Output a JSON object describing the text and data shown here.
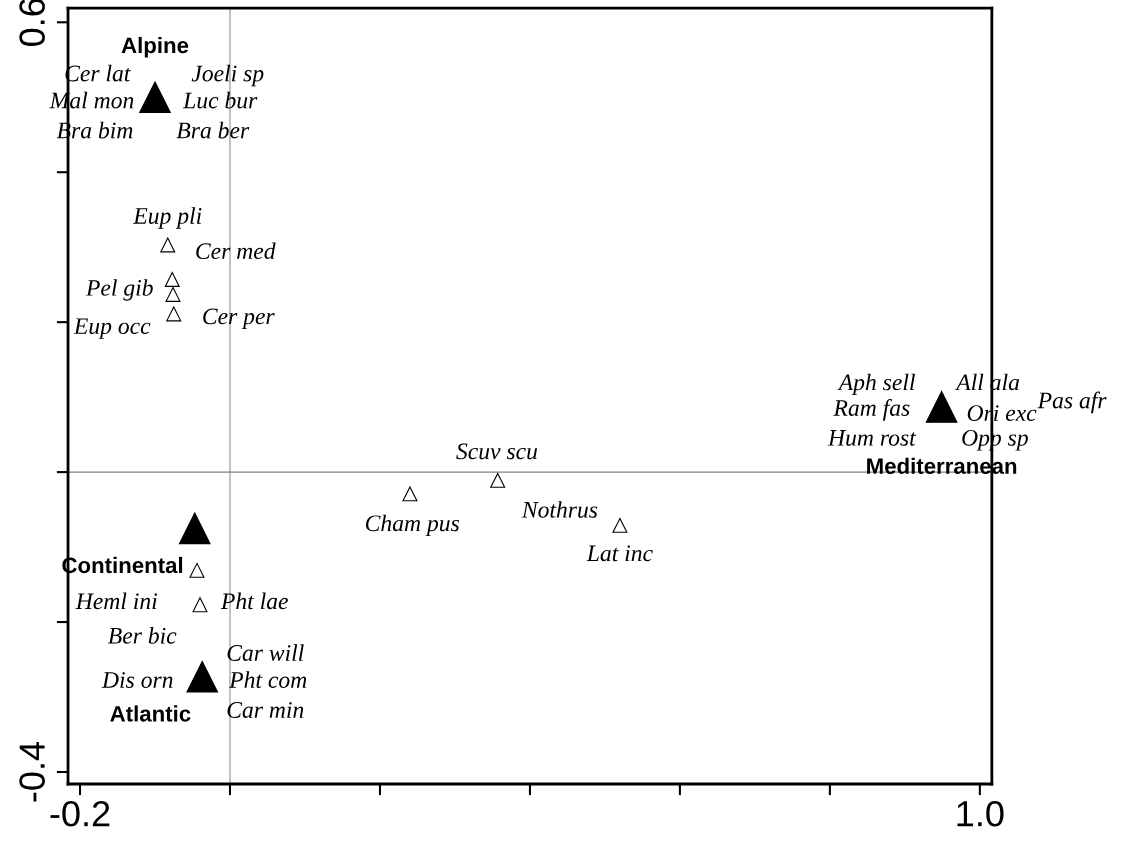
{
  "chart_data": {
    "type": "scatter",
    "xlim": [
      -0.216,
      1.016
    ],
    "ylim": [
      -0.416,
      0.619
    ],
    "xticks": [
      -0.2,
      {
        "value": 0,
        "label": null
      },
      {
        "value": 0.2,
        "label": null
      },
      {
        "value": 0.4,
        "label": null
      },
      {
        "value": 0.6,
        "label": null
      },
      {
        "value": 0.8,
        "label": null
      },
      {
        "value": 1.0,
        "label": "1.0"
      }
    ],
    "yticks": [
      {
        "value": -0.4,
        "label": "-0.4"
      },
      {
        "value": -0.2,
        "label": null
      },
      {
        "value": 0,
        "label": null
      },
      {
        "value": 0.2,
        "label": null
      },
      {
        "value": 0.4,
        "label": null
      },
      {
        "value": 0.6,
        "label": "0.6"
      }
    ],
    "marker": "triangle",
    "grid": false,
    "legend": false,
    "ref_lines": [
      {
        "axis": "x",
        "value": 0,
        "color": "#909090"
      },
      {
        "axis": "y",
        "value": 0,
        "color": "#808080"
      }
    ],
    "series": [
      {
        "color": "#ffffff",
        "x": [
          -0.083,
          -0.077,
          -0.076,
          -0.075,
          0.357,
          0.24,
          0.52,
          -0.044,
          -0.04
        ],
        "values": [
          0.303,
          0.257,
          0.237,
          0.211,
          -0.011,
          -0.029,
          -0.071,
          -0.131,
          -0.177
        ]
      },
      {
        "name": "Alpine",
        "color": "#000000",
        "x": [
          -0.1
        ],
        "values": [
          0.5
        ]
      },
      {
        "name": "Mediterranean",
        "color": "#000000",
        "x": [
          0.949
        ],
        "values": [
          0.087
        ]
      },
      {
        "name": "Continental",
        "color": "#000000",
        "x": [
          -0.047
        ],
        "values": [
          -0.075
        ]
      },
      {
        "name": "Atlantic",
        "color": "#000000",
        "x": [
          -0.037
        ],
        "values": [
          -0.273
        ]
      }
    ],
    "annotations": [
      "Cer lat",
      "Joeli sp",
      "Mal mon",
      "Luc bur",
      "Bra bim",
      "Bra ber",
      "Eup pli",
      "Cer med",
      "Pel gib",
      "Cer per",
      "Eup occ",
      "Aph sell",
      "All ala",
      "Pas afr",
      "Ram fas",
      "Ori exc",
      "Hum rost",
      "Opp sp",
      "Scuv scu",
      "Cham pus",
      "Nothrus",
      "Lat inc",
      "Heml ini",
      "Pht lae",
      "Ber bic",
      "Car will",
      "Dis orn",
      "Pht com",
      "Car min"
    ]
  }
}
